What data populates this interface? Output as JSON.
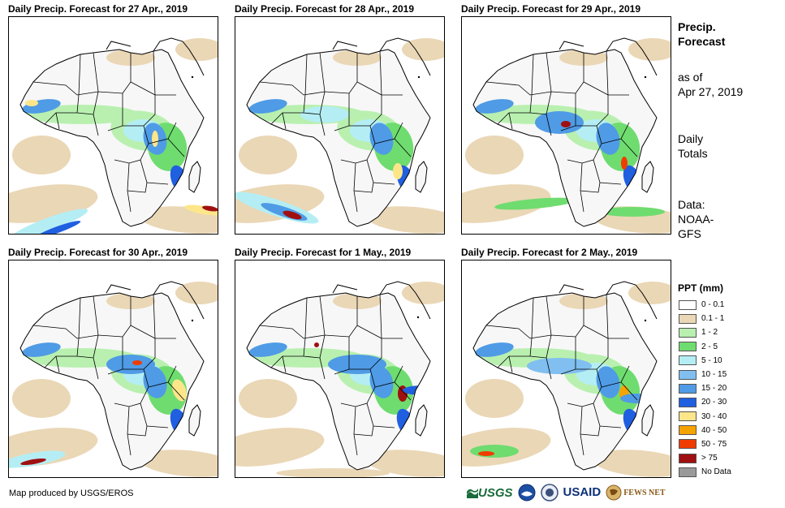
{
  "panels": [
    {
      "title": "Daily Precip. Forecast for 27 Apr., 2019"
    },
    {
      "title": "Daily Precip. Forecast for 28 Apr., 2019"
    },
    {
      "title": "Daily Precip. Forecast for 29 Apr., 2019"
    },
    {
      "title": "Daily Precip. Forecast for 30 Apr., 2019"
    },
    {
      "title": "Daily Precip. Forecast for 1 May., 2019"
    },
    {
      "title": "Daily Precip. Forecast for 2 May., 2019"
    }
  ],
  "info": {
    "heading_line1": "Precip.",
    "heading_line2": "Forecast",
    "asof_line1": "as of",
    "asof_line2": "Apr 27, 2019",
    "totals_line1": "Daily",
    "totals_line2": "Totals",
    "data_line1": "Data:",
    "data_line2": "NOAA-",
    "data_line3": "GFS"
  },
  "legend": {
    "title": "PPT (mm)",
    "items": [
      {
        "label": "0 - 0.1",
        "color": "#ffffff"
      },
      {
        "label": "0.1 - 1",
        "color": "#ead7b6"
      },
      {
        "label": "1 - 2",
        "color": "#b9f0b0"
      },
      {
        "label": "2 - 5",
        "color": "#6fdc6f"
      },
      {
        "label": "5 - 10",
        "color": "#b4eef4"
      },
      {
        "label": "10 - 15",
        "color": "#80bff0"
      },
      {
        "label": "15 - 20",
        "color": "#4f9be6"
      },
      {
        "label": "20 - 30",
        "color": "#1f5fe0"
      },
      {
        "label": "30 - 40",
        "color": "#fde68a"
      },
      {
        "label": "40 - 50",
        "color": "#f5a300"
      },
      {
        "label": "50 - 75",
        "color": "#f03c00"
      },
      {
        "label": "> 75",
        "color": "#a01010"
      },
      {
        "label": "No Data",
        "color": "#9a9a9a"
      }
    ]
  },
  "credit": "Map produced by USGS/EROS",
  "logos": {
    "usgs": "USGS",
    "usaid": "USAID",
    "fews": "FEWS NET"
  }
}
